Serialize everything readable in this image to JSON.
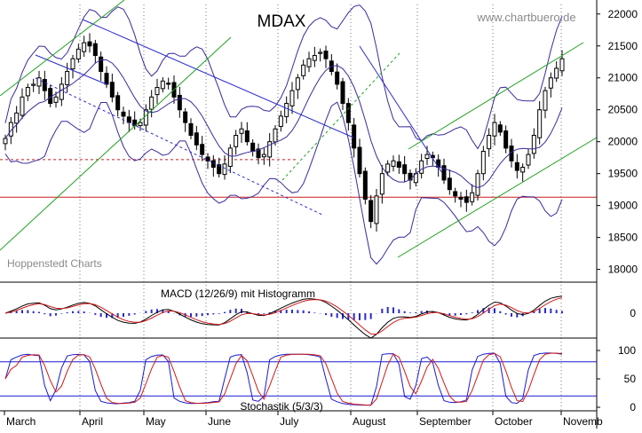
{
  "title": "MDAX",
  "watermark": "www.chartbuero.de",
  "source": "Hoppenstedt Charts",
  "macd_label": "MACD (12/26/9) mit Histogramm",
  "stoch_label": "Stochastik (5/3/3)",
  "colors": {
    "candle": "#000000",
    "bollinger": "#3a2a9c",
    "trend_blue": "#2a2ad0",
    "trend_green": "#20a020",
    "support_red": "#c81e1e",
    "macd_line": "#000000",
    "signal_line": "#d01818",
    "histogram": "#2a2ad0",
    "stoch_k": "#1a1ad0",
    "stoch_d": "#d01818",
    "grid": "#7a7a7a"
  },
  "chart_data": [
    {
      "type": "candlestick",
      "title": "MDAX",
      "ylim": [
        17800,
        22150
      ],
      "y_ticks": [
        18000,
        18500,
        19000,
        19500,
        20000,
        20500,
        21000,
        21500,
        22000
      ],
      "x_ticks": [
        "March",
        "April",
        "May",
        "June",
        "July",
        "August",
        "September",
        "October",
        "Novemb"
      ],
      "grid": "vertical-dotted",
      "support_level": 19130,
      "resistance_level_dashed": 19720,
      "close": [
        20050,
        20300,
        20450,
        20700,
        20850,
        20900,
        21000,
        20800,
        20600,
        20700,
        20900,
        21100,
        21300,
        21450,
        21550,
        21500,
        21350,
        21100,
        20900,
        20700,
        20500,
        20400,
        20300,
        20250,
        20300,
        20500,
        20700,
        20850,
        20950,
        20900,
        20700,
        20500,
        20300,
        20100,
        19950,
        19800,
        19700,
        19600,
        19500,
        19650,
        19900,
        20100,
        20200,
        20000,
        19850,
        19750,
        19800,
        20000,
        20200,
        20400,
        20600,
        20800,
        21000,
        21200,
        21300,
        21350,
        21400,
        21300,
        21100,
        20900,
        20600,
        20300,
        19900,
        19500,
        19100,
        18750,
        19150,
        19500,
        19650,
        19700,
        19600,
        19500,
        19400,
        19500,
        19700,
        19800,
        19750,
        19600,
        19400,
        19250,
        19150,
        19100,
        19050,
        19200,
        19500,
        19850,
        20100,
        20300,
        20150,
        19900,
        19700,
        19550,
        19600,
        19800,
        20100,
        20500,
        20800,
        21000,
        21150,
        21300
      ]
    },
    {
      "type": "line",
      "title": "MACD (12/26/9) mit Histogramm",
      "y_ticks": [
        0
      ]
    },
    {
      "type": "line",
      "title": "Stochastik (5/3/3)",
      "ylim": [
        0,
        100
      ],
      "y_ticks": [
        0,
        50,
        100
      ],
      "levels": [
        20,
        80
      ]
    }
  ]
}
